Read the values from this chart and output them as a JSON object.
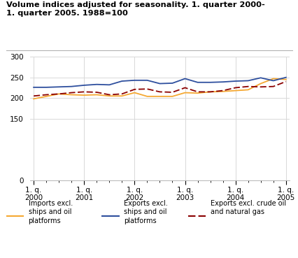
{
  "title": "Volume indices adjusted for seasonality. 1. quarter 2000-\n1. quarter 2005. 1988=100",
  "ylim": [
    0,
    300
  ],
  "yticks": [
    0,
    150,
    200,
    250,
    300
  ],
  "x_labels": [
    "1. q.\n2000",
    "1. q.\n2001",
    "1. q.\n2002",
    "1. q.\n2003",
    "1. q.\n2004",
    "1. q.\n2005"
  ],
  "x_tick_positions": [
    0,
    4,
    8,
    12,
    16,
    20
  ],
  "imports": [
    198,
    204,
    210,
    208,
    207,
    208,
    205,
    205,
    213,
    204,
    204,
    204,
    213,
    212,
    215,
    216,
    218,
    220,
    235,
    247,
    245
  ],
  "exports": [
    226,
    226,
    227,
    228,
    231,
    233,
    232,
    241,
    243,
    243,
    235,
    236,
    247,
    238,
    238,
    239,
    241,
    242,
    249,
    242,
    250
  ],
  "exports_excl": [
    205,
    208,
    210,
    213,
    215,
    214,
    208,
    210,
    221,
    222,
    215,
    214,
    225,
    215,
    215,
    218,
    225,
    228,
    227,
    228,
    240
  ],
  "imports_color": "#f5a832",
  "exports_color": "#2e4f9e",
  "exports_excl_color": "#8b0000",
  "bg_color": "#ffffff",
  "grid_color": "#d8d8d8",
  "legend_labels": [
    "Imports excl.\nships and oil\nplatforms",
    "Exports excl.\nships and oil\nplatforms",
    "Exports excl. crude oil\nand natural gas"
  ]
}
